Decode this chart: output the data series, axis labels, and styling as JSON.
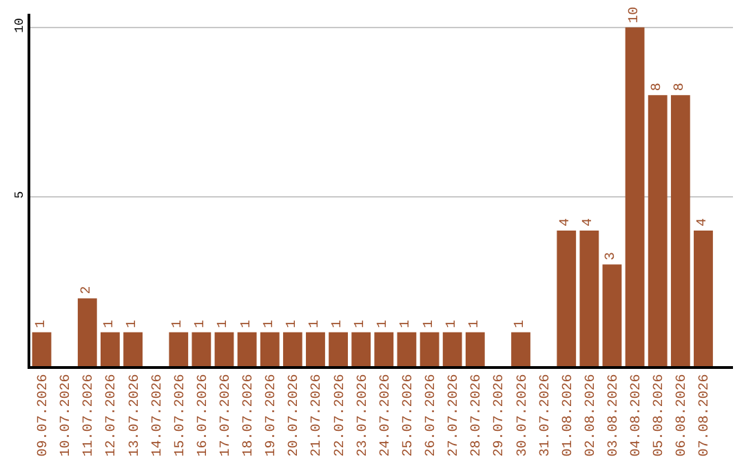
{
  "chart_data": {
    "type": "bar",
    "categories": [
      "09.07.2026",
      "10.07.2026",
      "11.07.2026",
      "12.07.2026",
      "13.07.2026",
      "14.07.2026",
      "15.07.2026",
      "16.07.2026",
      "17.07.2026",
      "18.07.2026",
      "19.07.2026",
      "20.07.2026",
      "21.07.2026",
      "22.07.2026",
      "23.07.2026",
      "24.07.2026",
      "25.07.2026",
      "26.07.2026",
      "27.07.2026",
      "28.07.2026",
      "29.07.2026",
      "30.07.2026",
      "31.07.2026",
      "01.08.2026",
      "02.08.2026",
      "03.08.2026",
      "04.08.2026",
      "05.08.2026",
      "06.08.2026",
      "07.08.2026"
    ],
    "values": [
      1,
      0,
      2,
      1,
      1,
      0,
      1,
      1,
      1,
      1,
      1,
      1,
      1,
      1,
      1,
      1,
      1,
      1,
      1,
      1,
      0,
      1,
      0,
      4,
      4,
      3,
      10,
      8,
      8,
      4
    ],
    "value_labels": [
      "1",
      null,
      "2",
      "1",
      "1",
      null,
      "1",
      "1",
      "1",
      "1",
      "1",
      "1",
      "1",
      "1",
      "1",
      "1",
      "1",
      "1",
      "1",
      "1",
      null,
      "1",
      null,
      "4",
      "4",
      "3",
      "10",
      "8",
      "8",
      "4"
    ],
    "color": "#a0522d",
    "ylim": [
      0,
      10.4
    ],
    "yticks": [
      5,
      10
    ],
    "grid": "y",
    "legend": false
  }
}
